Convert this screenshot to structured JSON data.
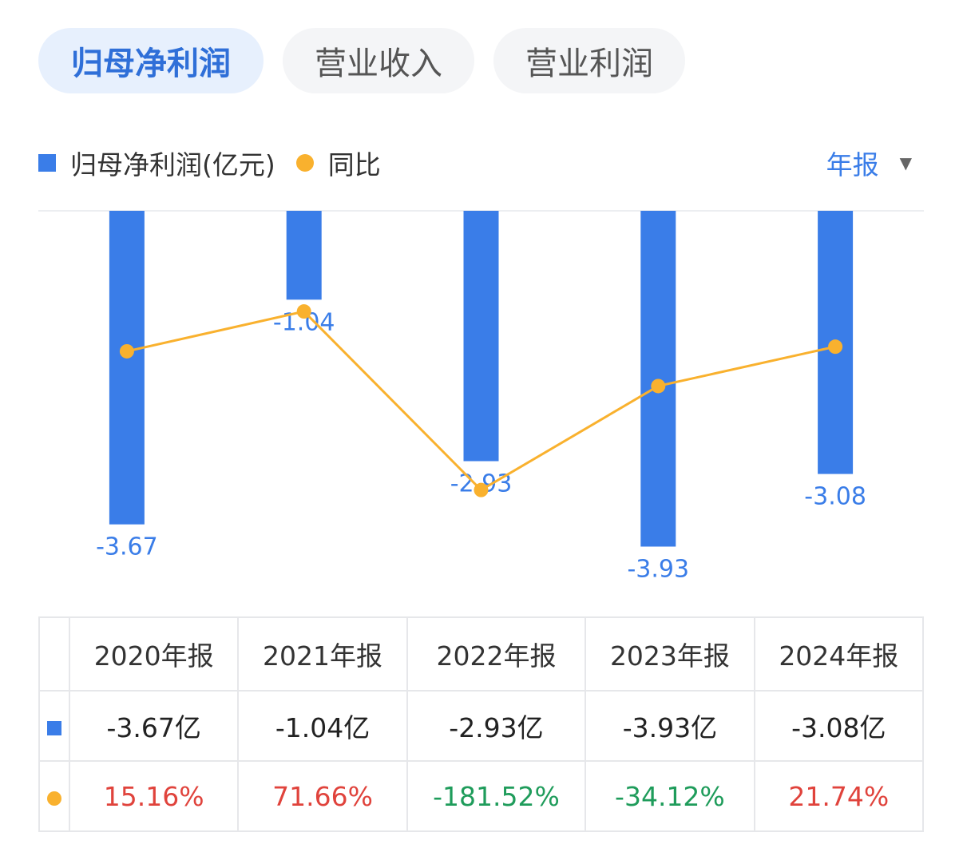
{
  "tabs": [
    {
      "label": "归母净利润",
      "active": true
    },
    {
      "label": "营业收入",
      "active": false
    },
    {
      "label": "营业利润",
      "active": false
    }
  ],
  "legend": {
    "bar_label": "归母净利润(亿元)",
    "line_label": "同比"
  },
  "period_selector": {
    "label": "年报"
  },
  "colors": {
    "bar": "#3a7de8",
    "line": "#f9b12e",
    "positive": "#e0433c",
    "negative": "#1f9c5b"
  },
  "chart_data": {
    "type": "bar",
    "categories": [
      "2020年报",
      "2021年报",
      "2022年报",
      "2023年报",
      "2024年报"
    ],
    "series": [
      {
        "name": "归母净利润(亿元)",
        "type": "bar",
        "values": [
          -3.67,
          -1.04,
          -2.93,
          -3.93,
          -3.08
        ],
        "labels": [
          "-3.67",
          "-1.04",
          "-2.93",
          "-3.93",
          "-3.08"
        ]
      },
      {
        "name": "同比",
        "type": "line",
        "values": [
          15.16,
          71.66,
          -181.52,
          -34.12,
          21.74
        ]
      }
    ],
    "ylim": [
      -4.0,
      0
    ]
  },
  "table": {
    "headers": [
      "2020年报",
      "2021年报",
      "2022年报",
      "2023年报",
      "2024年报"
    ],
    "profit": [
      "-3.67亿",
      "-1.04亿",
      "-2.93亿",
      "-3.93亿",
      "-3.08亿"
    ],
    "yoy": [
      "15.16%",
      "71.66%",
      "-181.52%",
      "-34.12%",
      "21.74%"
    ]
  }
}
